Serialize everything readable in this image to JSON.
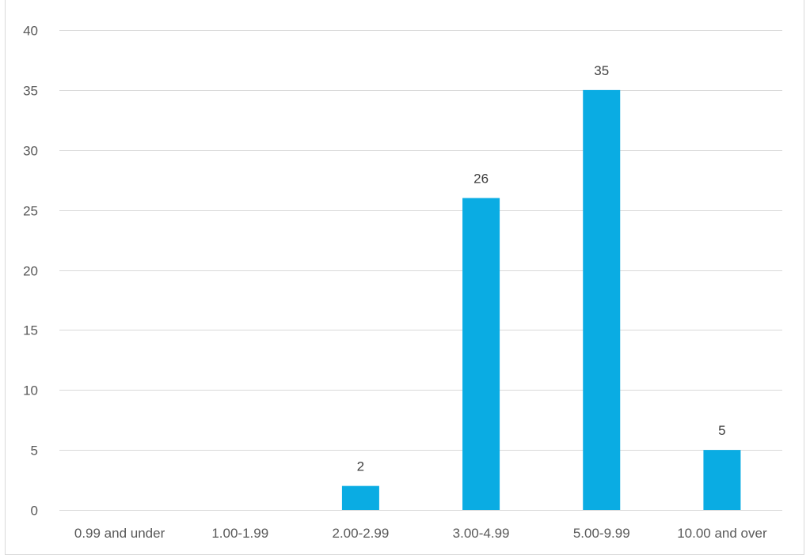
{
  "chart_data": {
    "type": "bar",
    "categories": [
      "0.99 and under",
      "1.00-1.99",
      "2.00-2.99",
      "3.00-4.99",
      "5.00-9.99",
      "10.00 and over"
    ],
    "values": [
      0,
      0,
      2,
      26,
      35,
      5
    ],
    "data_labels": [
      "",
      "",
      "2",
      "26",
      "35",
      "5"
    ],
    "title": "",
    "xlabel": "",
    "ylabel": "",
    "ylim": [
      0,
      40
    ],
    "yticks": [
      0,
      5,
      10,
      15,
      20,
      25,
      30,
      35,
      40
    ],
    "grid": true,
    "bar_color": "#0aace3",
    "legend": "none"
  }
}
